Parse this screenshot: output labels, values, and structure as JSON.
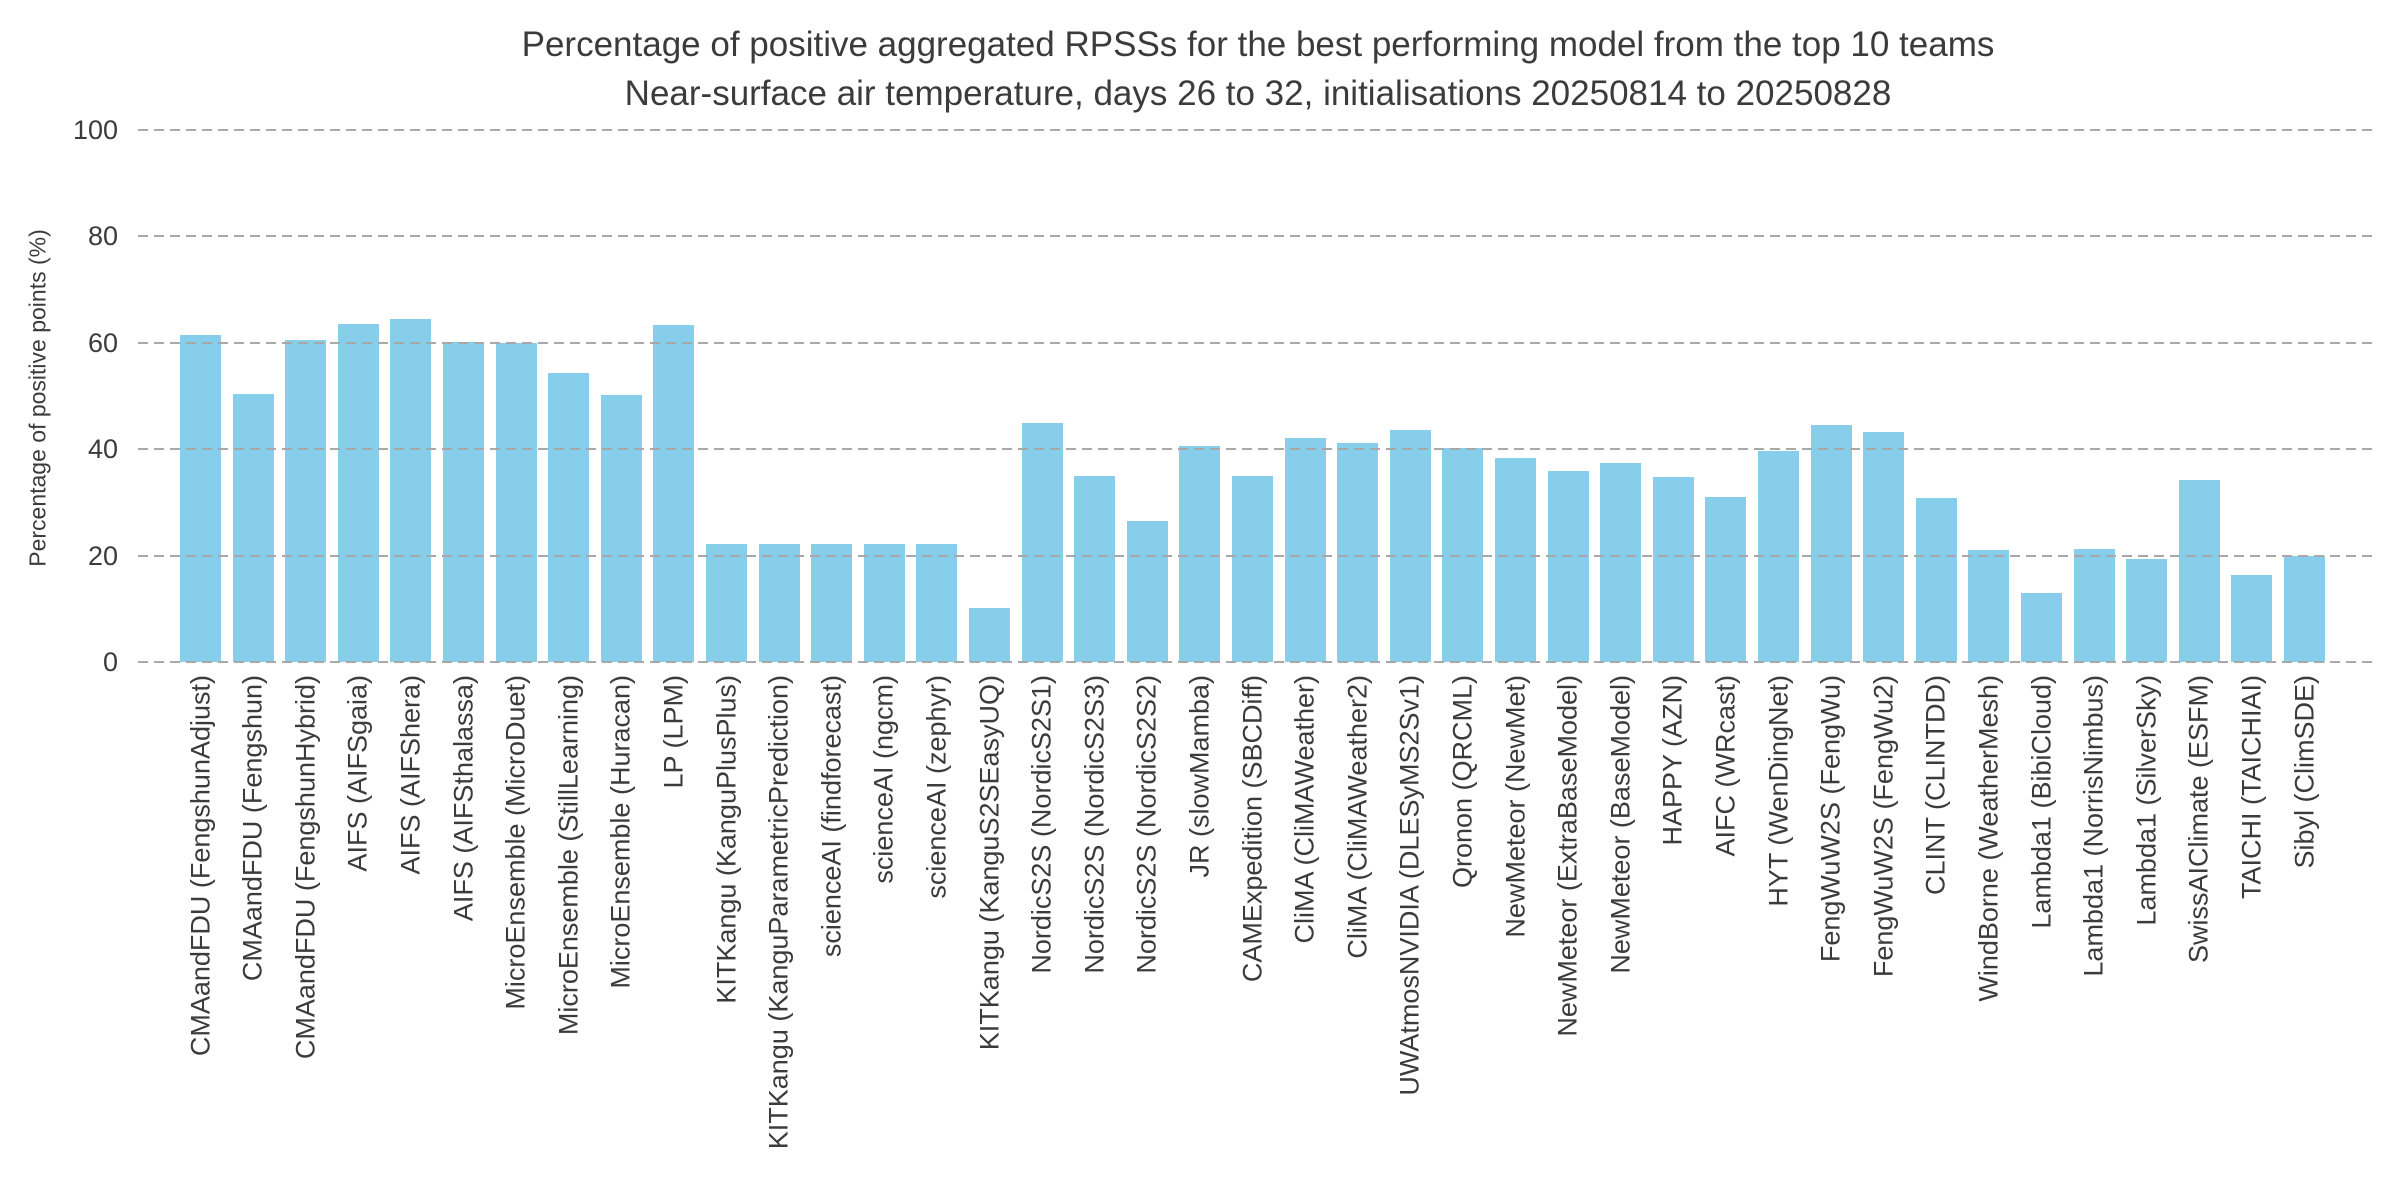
{
  "title": {
    "line1": "Percentage of positive aggregated RPSSs for the best performing model from the top 10 teams",
    "line2": "Near-surface air temperature, days 26 to 32, initialisations 20250814 to 20250828"
  },
  "y_axis": {
    "label": "Percentage of positive points (%)",
    "ticks": [
      0,
      20,
      40,
      60,
      80,
      100
    ]
  },
  "colors": {
    "bar": "#87CEEB",
    "grid": "#a8a8a8",
    "text": "#3b3b3b",
    "background": "#ffffff"
  },
  "chart_data": {
    "type": "bar",
    "title": "Percentage of positive aggregated RPSSs for the best performing model from the top 10 teams",
    "subtitle": "Near-surface air temperature, days 26 to 32, initialisations 20250814 to 20250828",
    "xlabel": "",
    "ylabel": "Percentage of positive points (%)",
    "ylim": [
      0,
      100
    ],
    "yticks": [
      0,
      20,
      40,
      60,
      80,
      100
    ],
    "grid": "horizontal-dashed",
    "legend": "none",
    "bar_color": "#87CEEB",
    "categories": [
      "CMAandFDU (FengshunAdjust)",
      "CMAandFDU (Fengshun)",
      "CMAandFDU (FengshunHybrid)",
      "AIFS (AIFSgaia)",
      "AIFS (AIFShera)",
      "AIFS (AIFSthalassa)",
      "MicroEnsemble (MicroDuet)",
      "MicroEnsemble (StillLearning)",
      "MicroEnsemble (Huracan)",
      "LP (LPM)",
      "KITKangu (KanguPlusPlus)",
      "KITKangu (KanguParametricPrediction)",
      "scienceAI (findforecast)",
      "scienceAI (ngcm)",
      "scienceAI (zephyr)",
      "KITKangu (KanguS2SEasyUQ)",
      "NordicS2S (NordicS2S1)",
      "NordicS2S (NordicS2S3)",
      "NordicS2S (NordicS2S2)",
      "JR (slowMamba)",
      "CAMExpedition (SBCDiff)",
      "CliMA (CliMAWeather)",
      "CliMA (CliMAWeather2)",
      "UWAtmosNVIDIA (DLESyMS2Sv1)",
      "Qronon (QRCML)",
      "NewMeteor (NewMet)",
      "NewMeteor (ExtraBaseModel)",
      "NewMeteor (BaseModel)",
      "HAPPY (AZN)",
      "AIFC (WRcast)",
      "HYT (WenDingNet)",
      "FengWuW2S (FengWu)",
      "FengWuW2S (FengWu2)",
      "CLINT (CLINTDD)",
      "WindBorne (WeatherMesh)",
      "Lambda1 (BibiCloud)",
      "Lambda1 (NorrisNimbus)",
      "Lambda1 (SilverSky)",
      "SwissAIClimate (ESFM)",
      "TAICHI (TAICHIAI)",
      "Sibyl (ClimSDE)"
    ],
    "values": [
      61.4,
      50.3,
      60.5,
      63.6,
      64.5,
      60.1,
      60.0,
      54.3,
      50.2,
      63.4,
      22.1,
      22.1,
      22.1,
      22.1,
      22.1,
      10.2,
      45.0,
      35.0,
      26.6,
      40.6,
      35.0,
      42.1,
      41.1,
      43.7,
      40.2,
      38.3,
      35.9,
      37.5,
      34.8,
      31.1,
      39.7,
      44.5,
      43.3,
      30.8,
      21.1,
      12.9,
      21.2,
      19.4,
      34.3,
      16.3,
      19.9
    ]
  }
}
